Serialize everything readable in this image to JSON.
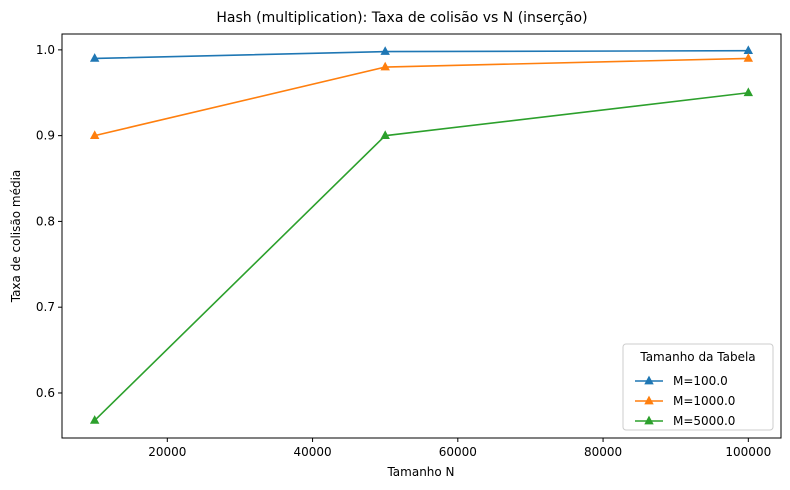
{
  "chart_data": {
    "type": "line",
    "title": "Hash (multiplication): Taxa de colisão vs N (inserção)",
    "xlabel": "Tamanho N",
    "ylabel": "Taxa de colisão média",
    "x": [
      10000,
      50000,
      100000
    ],
    "xlim": [
      5500,
      104500
    ],
    "ylim": [
      0.5475,
      1.0185
    ],
    "xticks": [
      20000,
      40000,
      60000,
      80000,
      100000
    ],
    "yticks": [
      0.6,
      0.7,
      0.8,
      0.9,
      1.0
    ],
    "xtick_labels": [
      "20000",
      "40000",
      "60000",
      "80000",
      "100000"
    ],
    "ytick_labels": [
      "0.6",
      "0.7",
      "0.8",
      "0.9",
      "1.0"
    ],
    "grid": false,
    "legend": {
      "title": "Tamanho da Tabela",
      "position": "lower-right"
    },
    "marker": "triangle-up",
    "series": [
      {
        "name": "M=100.0",
        "color": "#1f77b4",
        "values": [
          0.99,
          0.998,
          0.999
        ]
      },
      {
        "name": "M=1000.0",
        "color": "#ff7f0e",
        "values": [
          0.9,
          0.98,
          0.99
        ]
      },
      {
        "name": "M=5000.0",
        "color": "#2ca02c",
        "values": [
          0.568,
          0.9,
          0.95
        ]
      }
    ]
  }
}
